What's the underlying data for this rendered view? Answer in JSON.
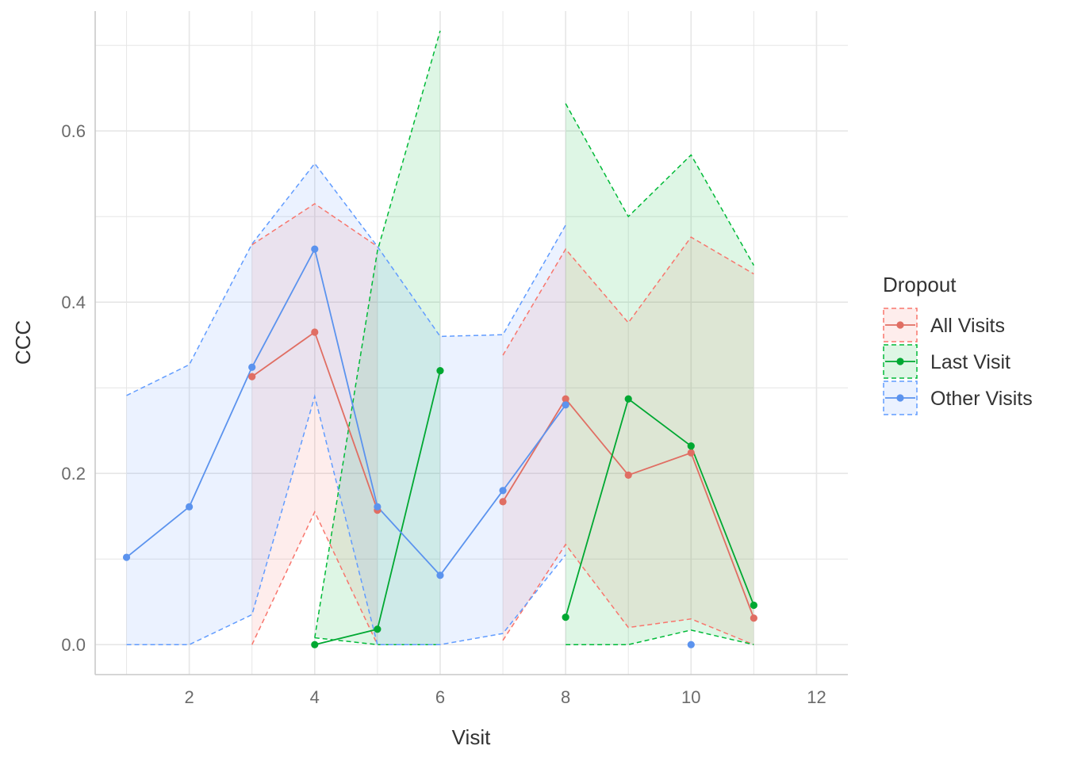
{
  "chart_data": {
    "type": "line",
    "xlabel": "Visit",
    "ylabel": "CCC",
    "xlim": [
      0.5,
      12.5
    ],
    "ylim": [
      -0.035,
      0.74
    ],
    "x_ticks": [
      2,
      4,
      6,
      8,
      10,
      12
    ],
    "x_tick_labels": [
      "2",
      "4",
      "6",
      "8",
      "10",
      "12"
    ],
    "y_ticks": [
      0.0,
      0.2,
      0.4,
      0.6
    ],
    "y_tick_labels": [
      "0.0",
      "0.2",
      "0.4",
      "0.6"
    ],
    "grid": true,
    "legend": {
      "title": "Dropout",
      "position": "right"
    },
    "series": [
      {
        "name": "All Visits",
        "color": "#F8766D",
        "line_color": "#E06E63",
        "segments": [
          {
            "x": [
              3,
              4,
              5
            ],
            "y": [
              0.313,
              0.365,
              0.157
            ],
            "lower": [
              0.0,
              0.155,
              0.0
            ],
            "upper": [
              0.467,
              0.515,
              0.465
            ]
          },
          {
            "x": [
              7,
              8,
              9,
              10,
              11
            ],
            "y": [
              0.167,
              0.287,
              0.198,
              0.224,
              0.031
            ],
            "lower": [
              0.005,
              0.117,
              0.02,
              0.03,
              0.0
            ],
            "upper": [
              0.338,
              0.462,
              0.376,
              0.476,
              0.433
            ]
          }
        ]
      },
      {
        "name": "Last Visit",
        "color": "#00BA38",
        "line_color": "#00A832",
        "segments": [
          {
            "x": [
              4,
              5,
              6
            ],
            "y": [
              0.0,
              0.018,
              0.32
            ],
            "lower": [
              0.008,
              0.0,
              0.0
            ],
            "upper": [
              0.008,
              0.46,
              0.717
            ]
          },
          {
            "x": [
              8,
              9,
              10,
              11
            ],
            "y": [
              0.032,
              0.287,
              0.232,
              0.046
            ],
            "lower": [
              0.0,
              0.0,
              0.017,
              0.0
            ],
            "upper": [
              0.632,
              0.5,
              0.572,
              0.443
            ]
          }
        ]
      },
      {
        "name": "Other Visits",
        "color": "#619CFF",
        "line_color": "#5B93EE",
        "segments": [
          {
            "x": [
              1,
              2,
              3,
              4,
              5,
              6,
              7,
              8
            ],
            "y": [
              0.102,
              0.161,
              0.324,
              0.462,
              0.161,
              0.081,
              0.18,
              0.28
            ],
            "lower": [
              0.0,
              0.0,
              0.035,
              0.29,
              0.0,
              0.0,
              0.013,
              0.105
            ],
            "upper": [
              0.291,
              0.327,
              0.468,
              0.562,
              0.465,
              0.36,
              0.362,
              0.49
            ]
          },
          {
            "x": [
              10
            ],
            "y": [
              0.0
            ],
            "lower": [],
            "upper": []
          }
        ]
      }
    ]
  }
}
